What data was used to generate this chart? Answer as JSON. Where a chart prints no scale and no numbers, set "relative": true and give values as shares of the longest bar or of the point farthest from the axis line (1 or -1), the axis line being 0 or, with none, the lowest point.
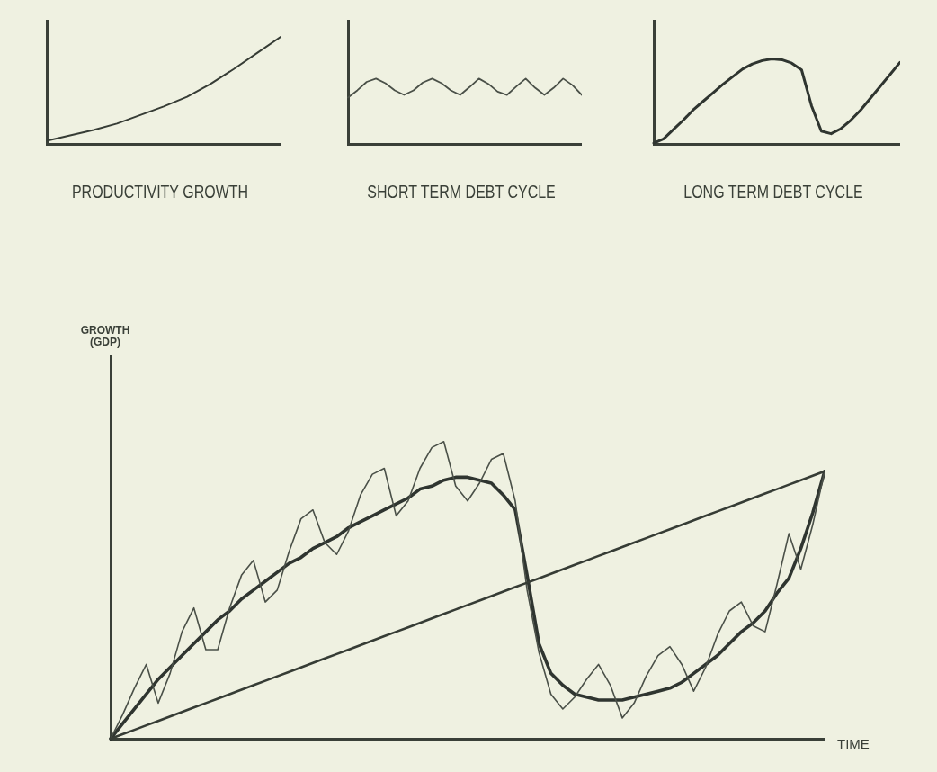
{
  "chart_data": [
    {
      "type": "line",
      "title": "PRODUCTIVITY GROWTH",
      "relative": true,
      "categories": [
        null,
        null,
        null,
        null,
        null,
        null,
        null,
        null,
        null,
        null,
        null
      ],
      "series": [
        {
          "color": "#363c35",
          "values": [
            0.03,
            0.08,
            0.13,
            0.19,
            0.27,
            0.35,
            0.44,
            0.56,
            0.7,
            0.85,
            1.0
          ]
        }
      ]
    },
    {
      "type": "line",
      "title": "SHORT TERM DEBT CYCLE",
      "relative": true,
      "categories": [
        null,
        null,
        null,
        null,
        null,
        null,
        null,
        null,
        null,
        null,
        null,
        null,
        null,
        null,
        null,
        null,
        null,
        null,
        null,
        null,
        null,
        null,
        null,
        null,
        null,
        null
      ],
      "series": [
        {
          "color": "#4a5048",
          "values": [
            0.71,
            0.82,
            0.95,
            1.0,
            0.93,
            0.82,
            0.75,
            0.82,
            0.94,
            1.0,
            0.93,
            0.82,
            0.75,
            0.87,
            1.0,
            0.92,
            0.8,
            0.75,
            0.88,
            1.0,
            0.86,
            0.75,
            0.86,
            1.0,
            0.9,
            0.75
          ]
        }
      ]
    },
    {
      "type": "line",
      "title": "LONG TERM DEBT CYCLE",
      "relative": true,
      "categories": [
        null,
        null,
        null,
        null,
        null,
        null,
        null,
        null,
        null,
        null,
        null,
        null,
        null,
        null,
        null,
        null,
        null,
        null,
        null,
        null,
        null,
        null,
        null,
        null,
        null,
        null
      ],
      "series": [
        {
          "color": "#2f3530",
          "values": [
            0.01,
            0.06,
            0.17,
            0.28,
            0.4,
            0.5,
            0.6,
            0.7,
            0.79,
            0.88,
            0.94,
            0.98,
            1.0,
            0.99,
            0.95,
            0.87,
            0.45,
            0.15,
            0.12,
            0.18,
            0.28,
            0.4,
            0.54,
            0.68,
            0.82,
            0.96
          ]
        }
      ]
    },
    {
      "type": "line",
      "xlabel": "TIME",
      "ylabel": "GROWTH (GDP)",
      "relative": true,
      "categories": [
        null,
        null,
        null,
        null,
        null,
        null,
        null,
        null,
        null,
        null,
        null,
        null,
        null,
        null,
        null,
        null,
        null,
        null,
        null,
        null,
        null,
        null,
        null,
        null,
        null,
        null,
        null,
        null,
        null,
        null,
        null,
        null,
        null,
        null,
        null,
        null,
        null,
        null,
        null,
        null,
        null,
        null,
        null,
        null,
        null,
        null,
        null,
        null,
        null,
        null,
        null,
        null,
        null,
        null,
        null,
        null,
        null,
        null,
        null,
        null,
        null
      ],
      "series": [
        {
          "color": "#363c35",
          "values": [
            0,
            0.015,
            0.03,
            0.045,
            0.06,
            0.075,
            0.09,
            0.105,
            0.12,
            0.135,
            0.15,
            0.165,
            0.18,
            0.195,
            0.21,
            0.225,
            0.24,
            0.255,
            0.27,
            0.285,
            0.3,
            0.315,
            0.33,
            0.345,
            0.36,
            0.375,
            0.39,
            0.405,
            0.42,
            0.435,
            0.45,
            0.465,
            0.48,
            0.495,
            0.51,
            0.525,
            0.54,
            0.555,
            0.57,
            0.585,
            0.6,
            0.615,
            0.63,
            0.645,
            0.66,
            0.675,
            0.69,
            0.705,
            0.72,
            0.735,
            0.75,
            0.765,
            0.78,
            0.795,
            0.81,
            0.825,
            0.84,
            0.855,
            0.87,
            0.885,
            0.9
          ]
        },
        {
          "color": "#4a5048",
          "values": [
            0,
            0.08,
            0.17,
            0.25,
            0.12,
            0.22,
            0.36,
            0.44,
            0.3,
            0.3,
            0.44,
            0.55,
            0.6,
            0.46,
            0.5,
            0.63,
            0.74,
            0.77,
            0.66,
            0.62,
            0.7,
            0.82,
            0.89,
            0.91,
            0.75,
            0.8,
            0.91,
            0.98,
            1.0,
            0.85,
            0.8,
            0.86,
            0.94,
            0.96,
            0.8,
            0.5,
            0.29,
            0.15,
            0.1,
            0.14,
            0.2,
            0.25,
            0.18,
            0.07,
            0.12,
            0.21,
            0.28,
            0.31,
            0.25,
            0.16,
            0.24,
            0.35,
            0.43,
            0.46,
            0.38,
            0.36,
            0.52,
            0.69,
            0.57,
            0.72,
            0.9
          ]
        },
        {
          "color": "#2f3530",
          "values": [
            0,
            0.05,
            0.1,
            0.15,
            0.2,
            0.24,
            0.28,
            0.32,
            0.36,
            0.4,
            0.43,
            0.47,
            0.5,
            0.53,
            0.56,
            0.59,
            0.61,
            0.64,
            0.66,
            0.68,
            0.71,
            0.73,
            0.75,
            0.77,
            0.79,
            0.81,
            0.84,
            0.85,
            0.87,
            0.88,
            0.88,
            0.87,
            0.86,
            0.82,
            0.77,
            0.55,
            0.32,
            0.22,
            0.18,
            0.15,
            0.14,
            0.13,
            0.13,
            0.13,
            0.14,
            0.15,
            0.16,
            0.17,
            0.19,
            0.22,
            0.25,
            0.28,
            0.32,
            0.36,
            0.39,
            0.43,
            0.49,
            0.54,
            0.64,
            0.76,
            0.9
          ]
        }
      ]
    }
  ]
}
